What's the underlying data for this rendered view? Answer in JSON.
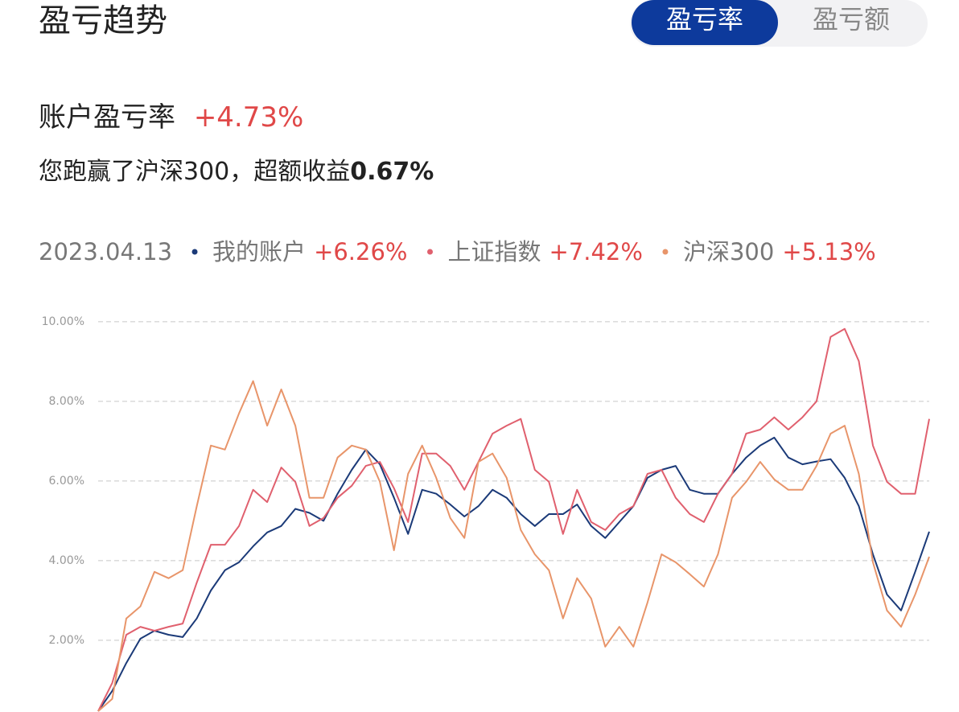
{
  "header": {
    "title": "盈亏趋势",
    "tabs": [
      "盈亏率",
      "盈亏额"
    ]
  },
  "summary": {
    "label": "账户盈亏率",
    "value": "+4.73%",
    "note": "您跑赢了沪深300，超额收益",
    "note_value": "0.67%"
  },
  "legend": {
    "date": "2023.04.13",
    "values": [
      "+6.26%",
      "+7.42%",
      "+5.13%"
    ]
  },
  "chart_data": {
    "type": "line",
    "ylim": [
      0.2,
      10.2
    ],
    "yticks": [
      {
        "value": 2,
        "label": "2.00%"
      },
      {
        "value": 4,
        "label": "4.00%"
      },
      {
        "value": 6,
        "label": "6.00%"
      },
      {
        "value": 8,
        "label": "8.00%"
      },
      {
        "value": 10,
        "label": "10.00%"
      }
    ],
    "grid": true,
    "series": [
      {
        "name": "我的账户",
        "color": "#1b3a78",
        "values": [
          0.22,
          0.73,
          1.43,
          2.04,
          2.24,
          2.14,
          2.08,
          2.55,
          3.25,
          3.76,
          3.96,
          4.36,
          4.71,
          4.87,
          5.3,
          5.2,
          5.0,
          5.68,
          6.28,
          6.79,
          6.42,
          5.58,
          4.67,
          5.78,
          5.68,
          5.41,
          5.11,
          5.37,
          5.78,
          5.58,
          5.17,
          4.87,
          5.17,
          5.17,
          5.41,
          4.87,
          4.57,
          4.97,
          5.37,
          6.08,
          6.28,
          6.38,
          5.78,
          5.68,
          5.68,
          6.18,
          6.59,
          6.89,
          7.09,
          6.59,
          6.42,
          6.49,
          6.55,
          6.08,
          5.37,
          4.16,
          3.15,
          2.75,
          3.72,
          4.73
        ]
      },
      {
        "name": "上证指数",
        "color": "#e0606e",
        "values": [
          0.22,
          0.93,
          2.14,
          2.34,
          2.24,
          2.34,
          2.42,
          3.45,
          4.4,
          4.4,
          4.87,
          5.78,
          5.47,
          6.34,
          5.98,
          4.87,
          5.07,
          5.58,
          5.88,
          6.38,
          6.48,
          5.82,
          4.97,
          6.69,
          6.69,
          6.38,
          5.78,
          6.48,
          7.19,
          7.39,
          7.56,
          6.28,
          5.98,
          4.67,
          5.78,
          4.97,
          4.77,
          5.17,
          5.37,
          6.18,
          6.28,
          5.58,
          5.17,
          4.97,
          5.68,
          6.18,
          7.19,
          7.29,
          7.6,
          7.29,
          7.6,
          8.0,
          9.62,
          9.82,
          9.01,
          6.89,
          5.98,
          5.68,
          5.68,
          7.56
        ]
      },
      {
        "name": "沪深300",
        "color": "#e8956a",
        "values": [
          0.22,
          0.53,
          2.55,
          2.85,
          3.72,
          3.56,
          3.76,
          5.37,
          6.89,
          6.79,
          7.7,
          8.51,
          7.39,
          8.3,
          7.39,
          5.58,
          5.58,
          6.59,
          6.89,
          6.79,
          5.98,
          4.26,
          6.18,
          6.89,
          6.08,
          5.07,
          4.57,
          6.48,
          6.69,
          6.08,
          4.77,
          4.16,
          3.76,
          2.55,
          3.56,
          3.05,
          1.84,
          2.34,
          1.84,
          2.95,
          4.16,
          3.96,
          3.66,
          3.35,
          4.16,
          5.58,
          5.98,
          6.48,
          6.04,
          5.78,
          5.78,
          6.38,
          7.19,
          7.39,
          6.18,
          3.96,
          2.75,
          2.34,
          3.15,
          4.1
        ]
      }
    ]
  }
}
